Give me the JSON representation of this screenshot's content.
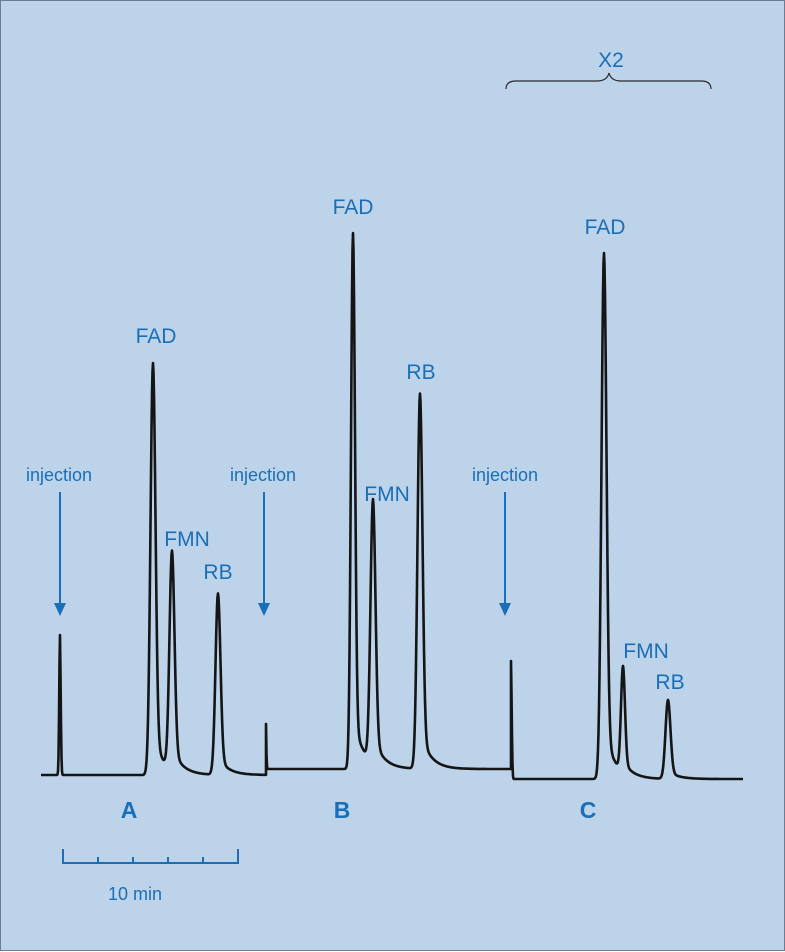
{
  "chart_data": {
    "type": "line",
    "title": "",
    "xlabel": "",
    "ylabel": "",
    "scale_bar": {
      "label": "10 min",
      "ticks": 5
    },
    "magnification": {
      "label": "X2",
      "applies_to": "C"
    },
    "injection_label": "injection",
    "runs": [
      {
        "name": "A",
        "injection": "injection",
        "peaks": [
          {
            "name": "FAD",
            "relative_height": 1.0
          },
          {
            "name": "FMN",
            "relative_height": 0.53
          },
          {
            "name": "RB",
            "relative_height": 0.44
          }
        ]
      },
      {
        "name": "B",
        "injection": "injection",
        "peaks": [
          {
            "name": "FAD",
            "relative_height": 1.0
          },
          {
            "name": "FMN",
            "relative_height": 0.49
          },
          {
            "name": "RB",
            "relative_height": 0.7
          }
        ]
      },
      {
        "name": "C",
        "injection": "injection",
        "peaks": [
          {
            "name": "FAD",
            "relative_height": 1.0
          },
          {
            "name": "FMN",
            "relative_height": 0.2
          },
          {
            "name": "RB",
            "relative_height": 0.15
          }
        ]
      }
    ]
  }
}
